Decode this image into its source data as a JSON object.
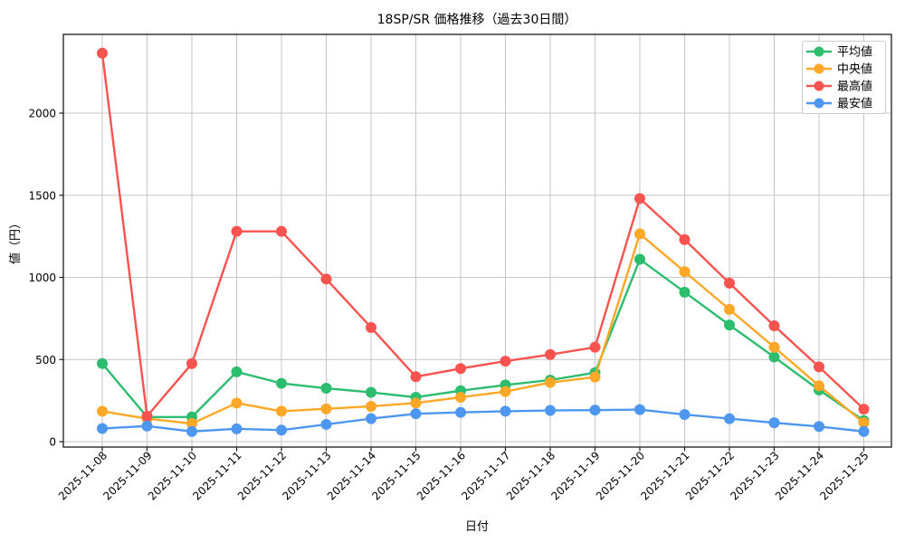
{
  "chart_data": {
    "type": "line",
    "title": "18SP/SR 価格推移（過去30日間）",
    "xlabel": "日付",
    "ylabel": "値（円）",
    "grid": true,
    "legend_position": "upper right",
    "ylim": [
      -35,
      2480
    ],
    "yticks": [
      0,
      500,
      1000,
      1500,
      2000
    ],
    "x": [
      "2025-11-08",
      "2025-11-09",
      "2025-11-10",
      "2025-11-11",
      "2025-11-12",
      "2025-11-13",
      "2025-11-14",
      "2025-11-15",
      "2025-11-16",
      "2025-11-17",
      "2025-11-18",
      "2025-11-19",
      "2025-11-20",
      "2025-11-21",
      "2025-11-22",
      "2025-11-23",
      "2025-11-24",
      "2025-11-25"
    ],
    "series": [
      {
        "key": "average",
        "label": "平均値",
        "color": "#2dbd6e",
        "values": [
          475,
          150,
          150,
          425,
          355,
          325,
          300,
          270,
          310,
          345,
          375,
          420,
          1110,
          910,
          710,
          515,
          315,
          128
        ]
      },
      {
        "key": "median",
        "label": "中央値",
        "color": "#ffa726",
        "values": [
          185,
          140,
          110,
          235,
          185,
          200,
          215,
          235,
          270,
          305,
          360,
          393,
          1265,
          1035,
          805,
          575,
          340,
          115
        ]
      },
      {
        "key": "max",
        "label": "最高値",
        "color": "#f8534f",
        "values": [
          2365,
          155,
          475,
          1280,
          1280,
          990,
          695,
          395,
          445,
          490,
          530,
          575,
          1480,
          1230,
          965,
          705,
          455,
          198
        ]
      },
      {
        "key": "min",
        "label": "最安値",
        "color": "#4e97f0",
        "values": [
          80,
          95,
          62,
          78,
          70,
          105,
          140,
          170,
          178,
          185,
          190,
          192,
          195,
          165,
          140,
          115,
          92,
          62
        ]
      }
    ],
    "colors": {
      "grid": "#c6c6c6",
      "spine": "#1a1a1a",
      "legend_border": "#cccccc",
      "background": "#ffffff"
    }
  }
}
